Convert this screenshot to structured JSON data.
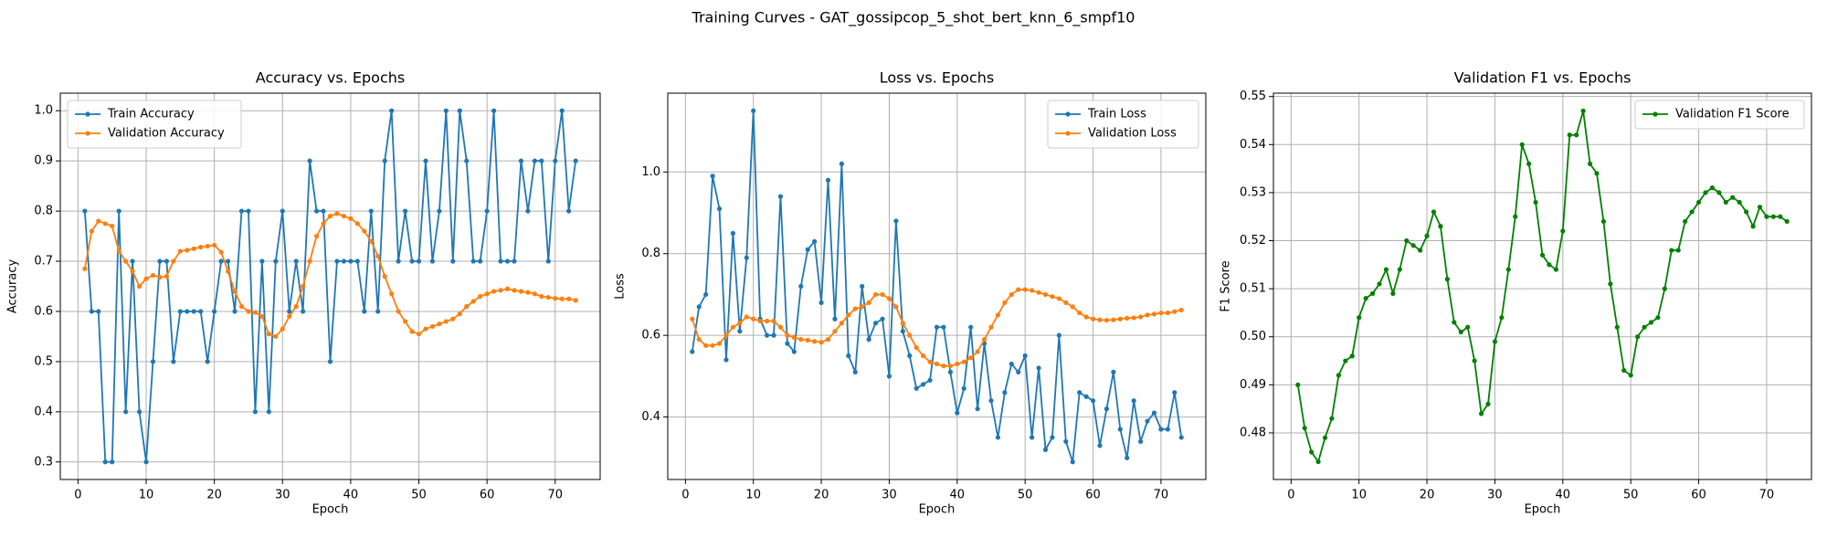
{
  "title": "Training Curves - GAT_gossipcop_5_shot_bert_knn_6_smpf10",
  "chart_data": [
    {
      "type": "line",
      "title": "Accuracy vs. Epochs",
      "x_label": "Epoch",
      "y_label": "Accuracy",
      "grid": true,
      "legend": "upper left",
      "x": [
        1,
        2,
        3,
        4,
        5,
        6,
        7,
        8,
        9,
        10,
        11,
        12,
        13,
        14,
        15,
        16,
        17,
        18,
        19,
        20,
        21,
        22,
        23,
        24,
        25,
        26,
        27,
        28,
        29,
        30,
        31,
        32,
        33,
        34,
        35,
        36,
        37,
        38,
        39,
        40,
        41,
        42,
        43,
        44,
        45,
        46,
        47,
        48,
        49,
        50,
        51,
        52,
        53,
        54,
        55,
        56,
        57,
        58,
        59,
        60,
        61,
        62,
        63,
        64,
        65,
        66,
        67,
        68,
        69,
        70,
        71,
        72,
        73
      ],
      "xlim": [
        -2.6,
        76.6
      ],
      "xticks": [
        0,
        10,
        20,
        30,
        40,
        50,
        60,
        70
      ],
      "ylim": [
        0.265,
        1.035
      ],
      "yticks": [
        0.3,
        0.4,
        0.5,
        0.6,
        0.7,
        0.8,
        0.9,
        {
          "value": 1,
          "label": "1.0"
        }
      ],
      "series": [
        {
          "name": "Train Accuracy",
          "color": "#1f77b4",
          "values": [
            0.8,
            0.6,
            0.6,
            0.3,
            0.3,
            0.8,
            0.4,
            0.7,
            0.4,
            0.3,
            0.5,
            0.7,
            0.7,
            0.5,
            0.6,
            0.6,
            0.6,
            0.6,
            0.5,
            0.6,
            0.7,
            0.7,
            0.6,
            0.8,
            0.8,
            0.4,
            0.7,
            0.4,
            0.7,
            0.8,
            0.6,
            0.7,
            0.6,
            0.9,
            0.8,
            0.8,
            0.5,
            0.7,
            0.7,
            0.7,
            0.7,
            0.6,
            0.8,
            0.6,
            0.9,
            1.0,
            0.7,
            0.8,
            0.7,
            0.7,
            0.9,
            0.7,
            0.8,
            1.0,
            0.7,
            1.0,
            0.9,
            0.7,
            0.7,
            0.8,
            1.0,
            0.7,
            0.7,
            0.7,
            0.9,
            0.8,
            0.9,
            0.9,
            0.7,
            0.9,
            1.0,
            0.8,
            0.9
          ]
        },
        {
          "name": "Validation Accuracy",
          "color": "#ff7f0e",
          "values": [
            0.685,
            0.76,
            0.78,
            0.775,
            0.77,
            0.72,
            0.7,
            0.68,
            0.65,
            0.665,
            0.672,
            0.668,
            0.67,
            0.7,
            0.72,
            0.722,
            0.725,
            0.728,
            0.73,
            0.732,
            0.718,
            0.68,
            0.64,
            0.61,
            0.6,
            0.598,
            0.59,
            0.555,
            0.55,
            0.565,
            0.59,
            0.61,
            0.65,
            0.7,
            0.75,
            0.775,
            0.79,
            0.795,
            0.79,
            0.785,
            0.775,
            0.76,
            0.74,
            0.71,
            0.67,
            0.635,
            0.6,
            0.58,
            0.56,
            0.555,
            0.565,
            0.57,
            0.575,
            0.58,
            0.585,
            0.595,
            0.61,
            0.62,
            0.63,
            0.635,
            0.64,
            0.642,
            0.645,
            0.642,
            0.64,
            0.638,
            0.635,
            0.63,
            0.628,
            0.626,
            0.625,
            0.625,
            0.622
          ]
        }
      ]
    },
    {
      "type": "line",
      "title": "Loss vs. Epochs",
      "x_label": "Epoch",
      "y_label": "Loss",
      "grid": true,
      "legend": "upper right",
      "x": [
        1,
        2,
        3,
        4,
        5,
        6,
        7,
        8,
        9,
        10,
        11,
        12,
        13,
        14,
        15,
        16,
        17,
        18,
        19,
        20,
        21,
        22,
        23,
        24,
        25,
        26,
        27,
        28,
        29,
        30,
        31,
        32,
        33,
        34,
        35,
        36,
        37,
        38,
        39,
        40,
        41,
        42,
        43,
        44,
        45,
        46,
        47,
        48,
        49,
        50,
        51,
        52,
        53,
        54,
        55,
        56,
        57,
        58,
        59,
        60,
        61,
        62,
        63,
        64,
        65,
        66,
        67,
        68,
        69,
        70,
        71,
        72,
        73
      ],
      "xlim": [
        -2.6,
        76.6
      ],
      "xticks": [
        0,
        10,
        20,
        30,
        40,
        50,
        60,
        70
      ],
      "ylim": [
        0.247,
        1.193
      ],
      "yticks": [
        0.4,
        0.6,
        0.8,
        {
          "value": 1,
          "label": "1.0"
        }
      ],
      "series": [
        {
          "name": "Train Loss",
          "color": "#1f77b4",
          "values": [
            0.56,
            0.67,
            0.7,
            0.99,
            0.91,
            0.54,
            0.85,
            0.61,
            0.79,
            1.15,
            0.64,
            0.6,
            0.6,
            0.94,
            0.58,
            0.56,
            0.72,
            0.81,
            0.83,
            0.68,
            0.98,
            0.64,
            1.02,
            0.55,
            0.51,
            0.72,
            0.59,
            0.63,
            0.64,
            0.5,
            0.88,
            0.61,
            0.55,
            0.47,
            0.48,
            0.49,
            0.62,
            0.62,
            0.51,
            0.41,
            0.47,
            0.62,
            0.42,
            0.58,
            0.44,
            0.35,
            0.46,
            0.53,
            0.51,
            0.55,
            0.35,
            0.52,
            0.32,
            0.35,
            0.6,
            0.34,
            0.29,
            0.46,
            0.45,
            0.44,
            0.33,
            0.42,
            0.51,
            0.37,
            0.3,
            0.44,
            0.34,
            0.39,
            0.41,
            0.37,
            0.37,
            0.46,
            0.35
          ]
        },
        {
          "name": "Validation Loss",
          "color": "#ff7f0e",
          "values": [
            0.64,
            0.59,
            0.575,
            0.575,
            0.58,
            0.6,
            0.62,
            0.63,
            0.645,
            0.64,
            0.635,
            0.635,
            0.635,
            0.62,
            0.6,
            0.595,
            0.59,
            0.588,
            0.585,
            0.583,
            0.59,
            0.61,
            0.63,
            0.65,
            0.665,
            0.67,
            0.68,
            0.7,
            0.7,
            0.69,
            0.67,
            0.63,
            0.6,
            0.57,
            0.55,
            0.535,
            0.53,
            0.525,
            0.525,
            0.53,
            0.535,
            0.545,
            0.56,
            0.59,
            0.62,
            0.65,
            0.68,
            0.7,
            0.712,
            0.712,
            0.71,
            0.705,
            0.7,
            0.695,
            0.69,
            0.68,
            0.67,
            0.655,
            0.645,
            0.64,
            0.638,
            0.637,
            0.638,
            0.64,
            0.642,
            0.643,
            0.645,
            0.65,
            0.652,
            0.655,
            0.655,
            0.658,
            0.662
          ]
        }
      ]
    },
    {
      "type": "line",
      "title": "Validation F1 vs. Epochs",
      "x_label": "Epoch",
      "y_label": "F1 Score",
      "grid": true,
      "legend": "upper right",
      "x": [
        1,
        2,
        3,
        4,
        5,
        6,
        7,
        8,
        9,
        10,
        11,
        12,
        13,
        14,
        15,
        16,
        17,
        18,
        19,
        20,
        21,
        22,
        23,
        24,
        25,
        26,
        27,
        28,
        29,
        30,
        31,
        32,
        33,
        34,
        35,
        36,
        37,
        38,
        39,
        40,
        41,
        42,
        43,
        44,
        45,
        46,
        47,
        48,
        49,
        50,
        51,
        52,
        53,
        54,
        55,
        56,
        57,
        58,
        59,
        60,
        61,
        62,
        63,
        64,
        65,
        66,
        67,
        68,
        69,
        70,
        71,
        72,
        73
      ],
      "xlim": [
        -2.6,
        76.6
      ],
      "xticks": [
        0,
        10,
        20,
        30,
        40,
        50,
        60,
        70
      ],
      "ylim": [
        0.4703,
        0.5507
      ],
      "yticks": [
        0.48,
        0.49,
        {
          "value": 0.5,
          "label": "0.50"
        },
        0.51,
        0.52,
        0.53,
        0.54,
        0.55
      ],
      "series": [
        {
          "name": "Validation F1 Score",
          "color": "#008000",
          "values": [
            0.49,
            0.481,
            0.476,
            0.474,
            0.479,
            0.483,
            0.492,
            0.495,
            0.496,
            0.504,
            0.508,
            0.509,
            0.511,
            0.514,
            0.509,
            0.514,
            0.52,
            0.519,
            0.518,
            0.521,
            0.526,
            0.523,
            0.512,
            0.503,
            0.501,
            0.502,
            0.495,
            0.484,
            0.486,
            0.499,
            0.504,
            0.514,
            0.525,
            0.54,
            0.536,
            0.528,
            0.517,
            0.515,
            0.514,
            0.522,
            0.542,
            0.542,
            0.547,
            0.536,
            0.534,
            0.524,
            0.511,
            0.502,
            0.493,
            0.492,
            0.5,
            0.502,
            0.503,
            0.504,
            0.51,
            0.518,
            0.518,
            0.524,
            0.526,
            0.528,
            0.53,
            0.531,
            0.53,
            0.528,
            0.529,
            0.528,
            0.526,
            0.523,
            0.527,
            0.525,
            0.525,
            0.525,
            0.524
          ]
        }
      ]
    }
  ]
}
